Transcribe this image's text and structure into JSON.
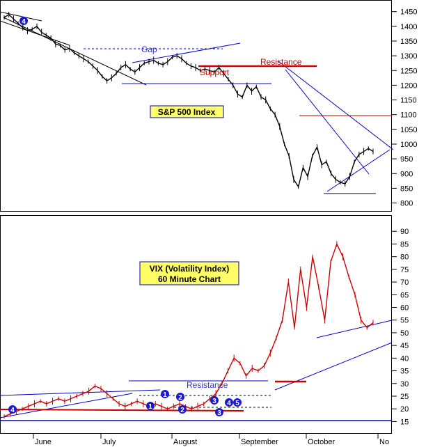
{
  "chart_data": [
    {
      "type": "line",
      "panel": "top",
      "title": "S&P 500 Index",
      "ylim": [
        780,
        1480
      ],
      "yticks": [
        1450,
        1400,
        1350,
        1300,
        1250,
        1200,
        1150,
        1100,
        1050,
        1000,
        950,
        900,
        850,
        800
      ],
      "months": [
        "June",
        "July",
        "August",
        "September",
        "October",
        "No"
      ],
      "series": [
        {
          "values": [
            1430,
            1440,
            1425,
            1410,
            1395,
            1385,
            1390,
            1400,
            1380,
            1370,
            1360,
            1340,
            1335,
            1320,
            1325,
            1310,
            1300,
            1290,
            1280,
            1265,
            1250,
            1230,
            1215,
            1225,
            1240,
            1260,
            1270,
            1255,
            1245,
            1260,
            1275,
            1280,
            1285,
            1275,
            1270,
            1280,
            1295,
            1300,
            1290,
            1275,
            1265,
            1260,
            1250,
            1255,
            1250,
            1245,
            1260,
            1240,
            1220,
            1200,
            1170,
            1160,
            1200,
            1180,
            1195,
            1160,
            1150,
            1120,
            1100,
            1060,
            1000,
            960,
            880,
            855,
            920,
            890,
            960,
            990,
            930,
            940,
            900,
            880,
            870,
            865,
            890,
            940,
            965,
            975,
            985,
            975
          ]
        }
      ],
      "annotations": [
        "Gap",
        "Resistance",
        "Support",
        "4"
      ]
    },
    {
      "type": "line",
      "panel": "bottom",
      "title": "VIX (Volatility Index)",
      "subtitle": "60 Minute Chart",
      "ylim": [
        11,
        95
      ],
      "yticks": [
        90,
        85,
        80,
        75,
        70,
        65,
        60,
        55,
        50,
        45,
        40,
        35,
        30,
        25,
        20,
        15
      ],
      "months": [
        "June",
        "July",
        "August",
        "September",
        "October",
        "No"
      ],
      "series": [
        {
          "values": [
            17,
            18,
            19,
            20,
            21,
            22,
            23,
            22,
            23,
            24,
            23,
            24,
            25,
            26,
            27,
            29,
            28,
            26,
            24,
            22,
            21,
            22,
            23,
            22,
            21,
            22,
            21,
            20,
            21,
            22,
            21,
            20,
            21,
            22,
            24,
            26,
            30,
            35,
            40,
            38,
            33,
            36,
            35,
            37,
            42,
            48,
            55,
            70,
            52,
            75,
            60,
            80,
            68,
            55,
            78,
            85,
            80,
            72,
            65,
            55,
            52,
            54
          ]
        }
      ],
      "annotations": [
        "Resistance",
        "1",
        "2",
        "3",
        "4",
        "5"
      ]
    }
  ]
}
